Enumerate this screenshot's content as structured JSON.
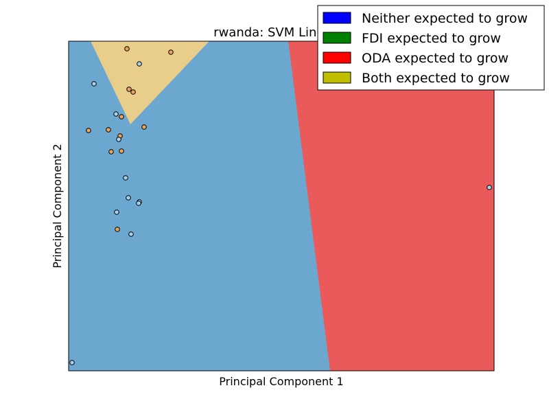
{
  "chart_data": {
    "type": "scatter",
    "title": "rwanda: SVM Linear-C",
    "xlabel": "Principal Component 1",
    "ylabel": "Principal Component 2",
    "xlim": [
      0,
      620
    ],
    "ylim": [
      0,
      480
    ],
    "grid": false,
    "x_ticks_visible": false,
    "y_ticks_visible": false,
    "legend": {
      "placement": "top-right",
      "entries": [
        {
          "label": "Neither expected to grow",
          "color": "#0000ff"
        },
        {
          "label": "FDI expected to grow",
          "color": "#008000"
        },
        {
          "label": "ODA expected to grow",
          "color": "#ff0000"
        },
        {
          "label": "Both expected to grow",
          "color": "#bfbf00"
        }
      ]
    },
    "regions": [
      {
        "name": "Neither expected to grow",
        "color": "#6ca7cf",
        "polygon": [
          [
            0,
            480
          ],
          [
            620,
            480
          ],
          [
            620,
            0
          ],
          [
            0,
            0
          ]
        ]
      },
      {
        "name": "ODA expected to grow",
        "color": "#eb5a5a",
        "polygon": [
          [
            320,
            480
          ],
          [
            620,
            480
          ],
          [
            620,
            0
          ],
          [
            381,
            0
          ]
        ]
      },
      {
        "name": "Both expected to grow",
        "color": "#e8cd8b",
        "polygon": [
          [
            32,
            480
          ],
          [
            205,
            480
          ],
          [
            90,
            359
          ]
        ]
      }
    ],
    "points_color_map": {
      "neither": "#a9cfe9",
      "oda": "#f08b82",
      "both": "#eaa35f"
    },
    "points": [
      {
        "x": 85,
        "y": 469,
        "class": "both"
      },
      {
        "x": 149,
        "y": 464,
        "class": "both"
      },
      {
        "x": 103,
        "y": 447,
        "class": "neither"
      },
      {
        "x": 37,
        "y": 418,
        "class": "neither"
      },
      {
        "x": 88,
        "y": 410,
        "class": "both"
      },
      {
        "x": 94,
        "y": 406,
        "class": "both"
      },
      {
        "x": 69,
        "y": 374,
        "class": "neither"
      },
      {
        "x": 77,
        "y": 370,
        "class": "both"
      },
      {
        "x": 110,
        "y": 355,
        "class": "both"
      },
      {
        "x": 29,
        "y": 350,
        "class": "both"
      },
      {
        "x": 58,
        "y": 351,
        "class": "both"
      },
      {
        "x": 75,
        "y": 342,
        "class": "both"
      },
      {
        "x": 73,
        "y": 337,
        "class": "neither"
      },
      {
        "x": 62,
        "y": 319,
        "class": "both"
      },
      {
        "x": 77,
        "y": 320,
        "class": "both"
      },
      {
        "x": 83,
        "y": 281,
        "class": "neither"
      },
      {
        "x": 87,
        "y": 252,
        "class": "neither"
      },
      {
        "x": 103,
        "y": 246,
        "class": "neither"
      },
      {
        "x": 102,
        "y": 244,
        "class": "neither"
      },
      {
        "x": 70,
        "y": 231,
        "class": "neither"
      },
      {
        "x": 71,
        "y": 206,
        "class": "both"
      },
      {
        "x": 91,
        "y": 199,
        "class": "neither"
      },
      {
        "x": 613,
        "y": 267,
        "class": "neither"
      },
      {
        "x": 5,
        "y": 12,
        "class": "neither"
      }
    ]
  }
}
